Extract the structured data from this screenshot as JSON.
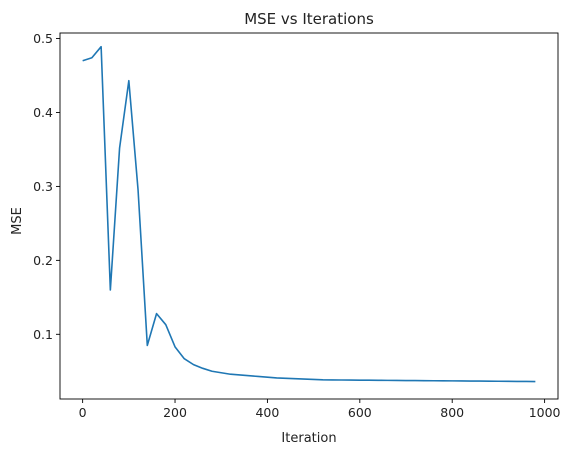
{
  "chart_data": {
    "type": "line",
    "title": "MSE vs Iterations",
    "xlabel": "Iteration",
    "ylabel": "MSE",
    "xlim": [
      -49,
      1029
    ],
    "ylim": [
      0.0125,
      0.5075
    ],
    "xticks": [
      0,
      200,
      400,
      600,
      800,
      1000
    ],
    "xtick_labels": [
      "0",
      "200",
      "400",
      "600",
      "800",
      "1000"
    ],
    "yticks": [
      0.1,
      0.2,
      0.3,
      0.4,
      0.5
    ],
    "ytick_labels": [
      "0.1",
      "0.2",
      "0.3",
      "0.4",
      "0.5"
    ],
    "grid": false,
    "line_color": "#1f77b4",
    "series": [
      {
        "x": [
          0,
          20,
          40,
          60,
          80,
          100,
          120,
          140,
          160,
          180,
          200,
          220,
          240,
          260,
          280,
          300,
          320,
          340,
          360,
          380,
          400,
          420,
          440,
          460,
          480,
          500,
          520,
          540,
          560,
          580,
          600,
          620,
          640,
          660,
          680,
          700,
          720,
          740,
          760,
          780,
          800,
          820,
          840,
          860,
          880,
          900,
          920,
          940,
          960,
          980
        ],
        "y": [
          0.47,
          0.474,
          0.489,
          0.16,
          0.352,
          0.443,
          0.295,
          0.085,
          0.128,
          0.113,
          0.083,
          0.067,
          0.059,
          0.054,
          0.05,
          0.048,
          0.046,
          0.045,
          0.044,
          0.043,
          0.042,
          0.041,
          0.0405,
          0.04,
          0.0395,
          0.039,
          0.0385,
          0.0383,
          0.0382,
          0.0381,
          0.038,
          0.0379,
          0.0378,
          0.0377,
          0.0376,
          0.0375,
          0.0374,
          0.0373,
          0.0372,
          0.0371,
          0.037,
          0.0369,
          0.0368,
          0.0367,
          0.0366,
          0.0365,
          0.0364,
          0.0363,
          0.0362,
          0.0361
        ]
      }
    ]
  }
}
